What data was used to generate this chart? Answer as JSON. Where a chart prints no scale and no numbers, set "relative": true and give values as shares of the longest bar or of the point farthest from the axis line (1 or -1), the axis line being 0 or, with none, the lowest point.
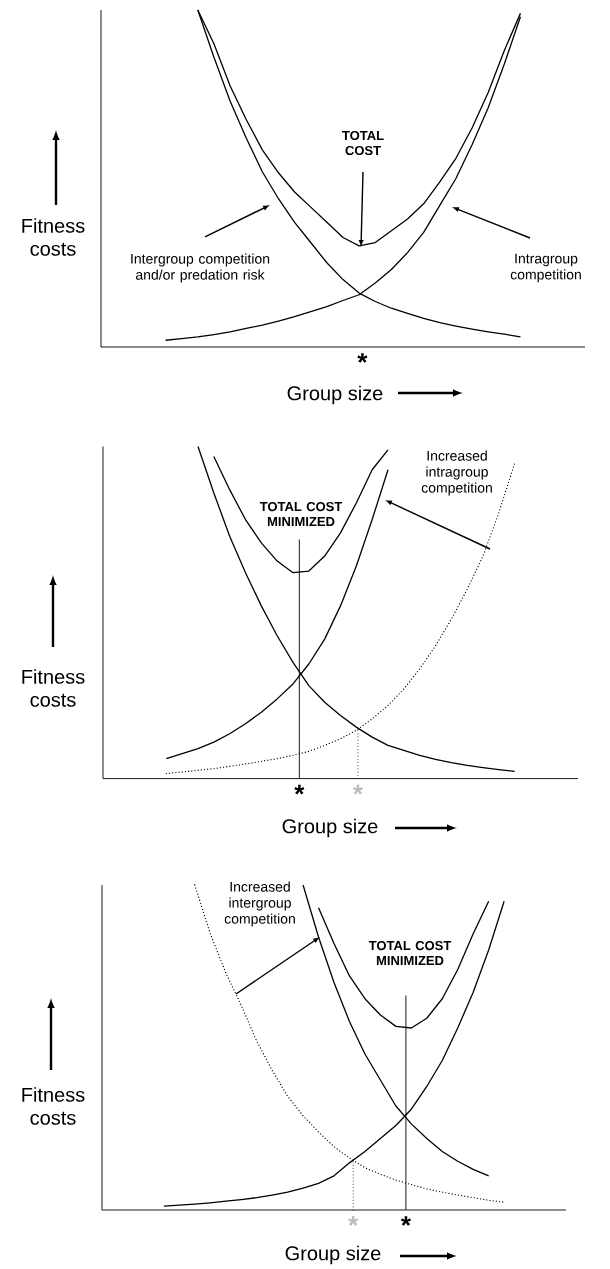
{
  "chart_data": [
    {
      "type": "line",
      "relative": true,
      "xlabel": "Group size",
      "ylabel": "Fitness costs",
      "categories": [
        null,
        null,
        null,
        null,
        null,
        null,
        null,
        null,
        null,
        null,
        null,
        null,
        null,
        null,
        null,
        null,
        null,
        null,
        null,
        null,
        null,
        null,
        null,
        null,
        null,
        null,
        null,
        null,
        null,
        null,
        null
      ],
      "series": [
        {
          "color": "#000000",
          "line_style": "solid",
          "values": [
            null,
            null,
            null,
            null,
            null,
            null,
            1.0,
            0.86,
            0.73,
            0.62,
            0.52,
            0.44,
            0.37,
            0.31,
            0.25,
            0.2,
            0.16,
            0.135,
            0.115,
            0.1,
            0.085,
            0.072,
            0.062,
            0.053,
            0.045,
            0.038,
            0.03,
            null,
            null,
            null,
            null
          ]
        },
        {
          "color": "#000000",
          "line_style": "solid",
          "values": [
            null,
            null,
            null,
            null,
            0.02,
            0.025,
            0.03,
            0.037,
            0.045,
            0.055,
            0.065,
            0.077,
            0.09,
            0.105,
            0.12,
            0.138,
            0.155,
            0.19,
            0.23,
            0.28,
            0.34,
            0.42,
            0.5,
            0.6,
            0.71,
            0.84,
            0.98,
            null,
            null,
            null,
            null
          ]
        },
        {
          "color": "#000000",
          "line_style": "solid",
          "values": [
            null,
            null,
            null,
            null,
            null,
            null,
            1.0,
            0.9,
            0.775,
            0.675,
            0.585,
            0.517,
            0.46,
            0.415,
            0.37,
            0.325,
            0.3,
            0.31,
            0.345,
            0.38,
            0.425,
            0.49,
            0.56,
            0.65,
            0.755,
            0.88,
            0.99,
            null,
            null,
            null,
            null
          ]
        }
      ],
      "annotations": [
        "TOTAL COST",
        "Intergroup competition and/or predation risk",
        "Intragroup competition",
        "*"
      ]
    },
    {
      "type": "line",
      "relative": true,
      "xlabel": "Group size",
      "ylabel": "Fitness costs",
      "categories": [
        null,
        null,
        null,
        null,
        null,
        null,
        null,
        null,
        null,
        null,
        null,
        null,
        null,
        null,
        null,
        null,
        null,
        null,
        null,
        null,
        null,
        null,
        null,
        null,
        null,
        null,
        null,
        null,
        null,
        null,
        null
      ],
      "series": [
        {
          "color": "#000000",
          "line_style": "solid",
          "values": [
            null,
            null,
            null,
            null,
            null,
            null,
            1.0,
            0.86,
            0.73,
            0.62,
            0.52,
            0.43,
            0.35,
            0.28,
            0.23,
            0.19,
            0.155,
            0.125,
            0.1,
            0.085,
            0.07,
            0.058,
            0.048,
            0.04,
            0.033,
            0.027,
            0.022,
            null,
            null,
            null,
            null
          ]
        },
        {
          "color": "#000000",
          "line_style": "solid",
          "values": [
            null,
            null,
            null,
            null,
            0.06,
            0.075,
            0.09,
            0.11,
            0.135,
            0.165,
            0.2,
            0.24,
            0.285,
            0.345,
            0.42,
            0.52,
            0.64,
            0.78,
            0.93,
            null,
            null,
            null,
            null,
            null,
            null,
            null,
            null,
            null,
            null,
            null,
            null
          ]
        },
        {
          "color": "#000000",
          "line_style": "solid",
          "values": [
            null,
            null,
            null,
            null,
            null,
            null,
            null,
            0.97,
            0.87,
            0.78,
            0.71,
            0.655,
            0.62,
            0.625,
            0.67,
            0.74,
            0.83,
            0.93,
            0.99,
            null,
            null,
            null,
            null,
            null,
            null,
            null,
            null,
            null,
            null,
            null,
            null
          ]
        },
        {
          "color": "#000000",
          "line_style": "dotted",
          "values": [
            null,
            null,
            null,
            null,
            0.015,
            0.02,
            0.025,
            0.03,
            0.037,
            0.044,
            0.052,
            0.06,
            0.07,
            0.082,
            0.1,
            0.12,
            0.145,
            0.18,
            0.22,
            0.27,
            0.33,
            0.4,
            0.48,
            0.57,
            0.67,
            0.8,
            0.95,
            null,
            null,
            null,
            null
          ]
        }
      ],
      "annotations": [
        "TOTAL COST MINIMIZED",
        "Increased intragroup competition",
        "*",
        "*"
      ]
    },
    {
      "type": "line",
      "relative": true,
      "xlabel": "Group size",
      "ylabel": "Fitness costs",
      "categories": [
        null,
        null,
        null,
        null,
        null,
        null,
        null,
        null,
        null,
        null,
        null,
        null,
        null,
        null,
        null,
        null,
        null,
        null,
        null,
        null,
        null,
        null,
        null,
        null,
        null,
        null,
        null,
        null,
        null,
        null,
        null
      ],
      "series": [
        {
          "color": "#000000",
          "line_style": "dotted",
          "values": [
            null,
            null,
            null,
            null,
            null,
            null,
            1.0,
            0.85,
            0.73,
            0.63,
            0.52,
            0.43,
            0.35,
            0.29,
            0.24,
            0.195,
            0.16,
            0.13,
            0.11,
            0.092,
            0.078,
            0.065,
            0.055,
            0.046,
            0.038,
            0.03,
            0.024,
            null,
            null,
            null,
            null
          ]
        },
        {
          "color": "#000000",
          "line_style": "solid",
          "values": [
            null,
            null,
            null,
            null,
            null,
            null,
            null,
            null,
            null,
            null,
            null,
            null,
            null,
            1.0,
            0.84,
            0.7,
            0.58,
            0.48,
            0.4,
            0.32,
            0.265,
            0.22,
            0.18,
            0.15,
            0.125,
            0.105,
            null,
            null,
            null,
            null,
            null
          ]
        },
        {
          "color": "#000000",
          "line_style": "solid",
          "values": [
            null,
            null,
            null,
            null,
            0.012,
            0.015,
            0.018,
            0.022,
            0.027,
            0.032,
            0.038,
            0.046,
            0.055,
            0.067,
            0.082,
            0.105,
            0.145,
            0.18,
            0.22,
            0.26,
            0.31,
            0.38,
            0.46,
            0.56,
            0.67,
            0.8,
            0.95,
            null,
            null,
            null,
            null
          ]
        },
        {
          "color": "#000000",
          "line_style": "solid",
          "values": [
            null,
            null,
            null,
            null,
            null,
            null,
            null,
            null,
            null,
            null,
            null,
            null,
            null,
            null,
            0.93,
            0.82,
            0.72,
            0.65,
            0.6,
            0.565,
            0.56,
            0.59,
            0.65,
            0.74,
            0.85,
            0.95,
            null,
            null,
            null,
            null,
            null
          ]
        }
      ],
      "annotations": [
        "Increased intergroup competition",
        "TOTAL COST MINIMIZED",
        "*",
        "*"
      ]
    }
  ]
}
